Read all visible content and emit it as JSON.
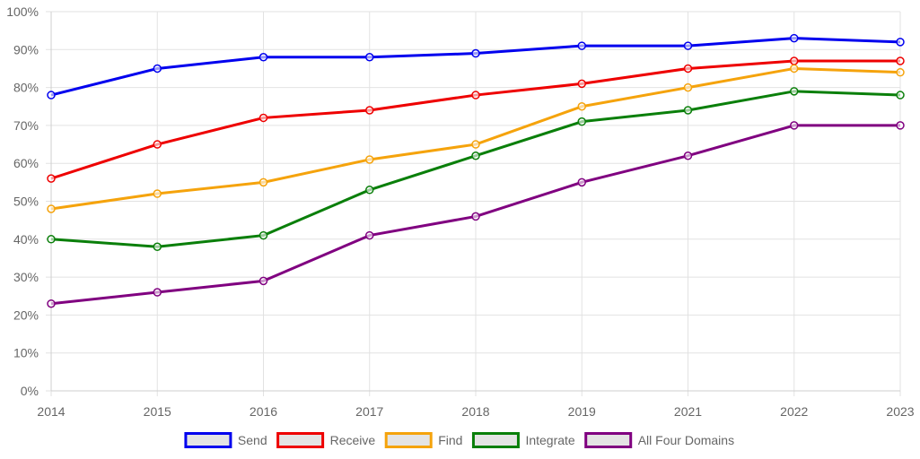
{
  "chart_data": {
    "type": "line",
    "title": "",
    "xlabel": "",
    "ylabel": "",
    "categories": [
      "2014",
      "2015",
      "2016",
      "2017",
      "2018",
      "2019",
      "2021",
      "2022",
      "2023"
    ],
    "y_ticks": [
      "0%",
      "10%",
      "20%",
      "30%",
      "40%",
      "50%",
      "60%",
      "70%",
      "80%",
      "90%",
      "100%"
    ],
    "ylim": [
      0,
      100
    ],
    "y_unit": "%",
    "grid": true,
    "legend_position": "bottom",
    "series": [
      {
        "name": "Send",
        "color": "#0000ee",
        "values": [
          78,
          85,
          88,
          88,
          89,
          91,
          91,
          93,
          92
        ]
      },
      {
        "name": "Receive",
        "color": "#ee0000",
        "values": [
          56,
          65,
          72,
          74,
          78,
          81,
          85,
          87,
          87
        ]
      },
      {
        "name": "Find",
        "color": "#f5a30c",
        "values": [
          48,
          52,
          55,
          61,
          65,
          75,
          80,
          85,
          84
        ]
      },
      {
        "name": "Integrate",
        "color": "#0a7f0a",
        "values": [
          40,
          38,
          41,
          53,
          62,
          71,
          74,
          79,
          78
        ]
      },
      {
        "name": "All Four Domains",
        "color": "#800080",
        "values": [
          23,
          26,
          29,
          41,
          46,
          55,
          62,
          70,
          70
        ]
      }
    ]
  }
}
